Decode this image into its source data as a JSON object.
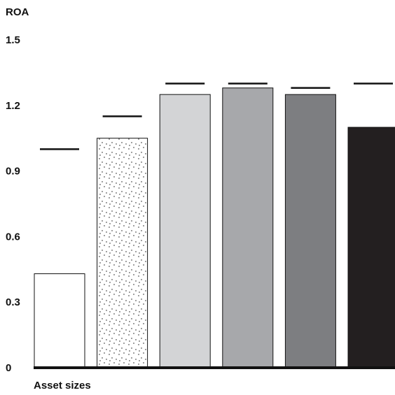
{
  "chart_data": {
    "type": "bar",
    "ylabel": "ROA",
    "xlabel": "Asset sizes",
    "ylim": [
      0,
      1.5
    ],
    "yticks": [
      "0",
      "0.3",
      "0.6",
      "0.9",
      "1.2",
      "1.5"
    ],
    "grid": false,
    "legend": "none",
    "bars": [
      {
        "value": 0.43,
        "benchmark": 1.0,
        "fill": "#ffffff",
        "pattern": "none"
      },
      {
        "value": 1.05,
        "benchmark": 1.15,
        "fill": "#ffffff",
        "pattern": "dots"
      },
      {
        "value": 1.25,
        "benchmark": 1.3,
        "fill": "#d3d4d6",
        "pattern": "none"
      },
      {
        "value": 1.28,
        "benchmark": 1.3,
        "fill": "#a7a8ab",
        "pattern": "none"
      },
      {
        "value": 1.25,
        "benchmark": 1.28,
        "fill": "#7d7e81",
        "pattern": "none"
      },
      {
        "value": 1.1,
        "benchmark": 1.3,
        "fill": "#231f20",
        "pattern": "none"
      }
    ]
  }
}
